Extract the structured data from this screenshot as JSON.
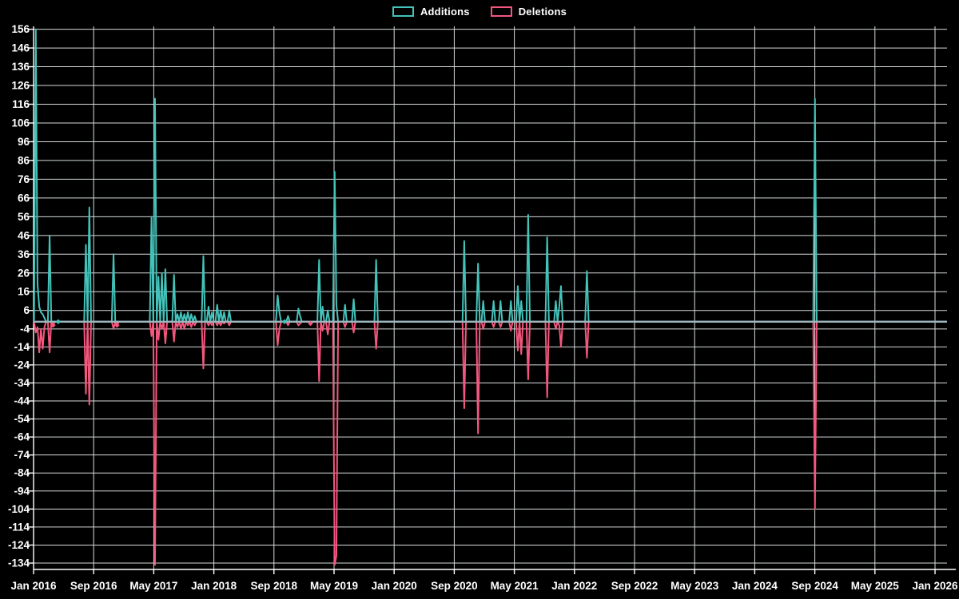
{
  "legend": {
    "items": [
      {
        "label": "Additions",
        "color": "#43c3ba"
      },
      {
        "label": "Deletions",
        "color": "#f4577d"
      }
    ]
  },
  "colors": {
    "background": "#000000",
    "grid": "#d7dbdd",
    "axis": "#ffffff",
    "tick_label": "#ffffff",
    "zero_line": "#9db5bd",
    "additions": "#43c3ba",
    "deletions": "#f4577d"
  },
  "y_axis": {
    "tick_max": 156,
    "tick_min": -134,
    "tick_step": 10,
    "labels": [
      "156",
      "146",
      "136",
      "126",
      "116",
      "106",
      "96",
      "86",
      "76",
      "66",
      "56",
      "46",
      "36",
      "26",
      "16",
      "6",
      "-4",
      "-14",
      "-24",
      "-34",
      "-44",
      "-54",
      "-64",
      "-74",
      "-84",
      "-94",
      "-104",
      "-114",
      "-124",
      "-134"
    ]
  },
  "x_axis": {
    "tick_interval_months": 8,
    "labels": [
      "Jan 2016",
      "Sep 2016",
      "May 2017",
      "Jan 2018",
      "Sep 2018",
      "May 2019",
      "Jan 2020",
      "Sep 2020",
      "May 2021",
      "Jan 2022",
      "Sep 2022",
      "May 2023",
      "Jan 2024",
      "Sep 2024",
      "May 2025",
      "Jan 2026"
    ]
  },
  "chart_data": {
    "type": "line",
    "title": "",
    "xlabel": "",
    "ylabel": "",
    "x_range": [
      "2016-01-03",
      "2026-02-01"
    ],
    "ylim": [
      -137,
      157
    ],
    "point_interval": "weekly",
    "grid": "on",
    "legend_position": "top-center",
    "series": [
      {
        "name": "Additions",
        "color": "#43c3ba"
      },
      {
        "name": "Deletions",
        "color": "#f4577d"
      }
    ],
    "baseline_note": "weeks not listed below have additions 0 and deletions 0",
    "weeks": [
      [
        "2016-01-03",
        0,
        0
      ],
      [
        "2016-01-10",
        156,
        -6
      ],
      [
        "2016-01-17",
        20,
        -3
      ],
      [
        "2016-01-24",
        8,
        -17
      ],
      [
        "2016-01-31",
        5,
        -4
      ],
      [
        "2016-02-07",
        4,
        -15
      ],
      [
        "2016-02-14",
        2,
        -3
      ],
      [
        "2016-03-06",
        46,
        -17
      ],
      [
        "2016-03-20",
        0,
        -2
      ],
      [
        "2016-04-10",
        0,
        0
      ],
      [
        "2016-07-31",
        41,
        -40
      ],
      [
        "2016-08-14",
        61,
        -46
      ],
      [
        "2016-11-20",
        36,
        -4
      ],
      [
        "2016-12-04",
        0,
        -2
      ],
      [
        "2017-04-23",
        56,
        -8
      ],
      [
        "2017-05-07",
        119,
        -135
      ],
      [
        "2017-05-21",
        24,
        -10
      ],
      [
        "2017-06-04",
        26,
        -4
      ],
      [
        "2017-06-18",
        28,
        -12
      ],
      [
        "2017-07-23",
        25,
        -11
      ],
      [
        "2017-08-06",
        4,
        -3
      ],
      [
        "2017-08-20",
        5,
        -4
      ],
      [
        "2017-09-03",
        4,
        -4
      ],
      [
        "2017-09-17",
        5,
        -2
      ],
      [
        "2017-10-01",
        4,
        -3
      ],
      [
        "2017-10-15",
        3,
        -2
      ],
      [
        "2017-11-19",
        35,
        -26
      ],
      [
        "2017-12-10",
        8,
        -2
      ],
      [
        "2017-12-24",
        5,
        -2
      ],
      [
        "2018-01-14",
        9,
        -2
      ],
      [
        "2018-01-28",
        6,
        -2
      ],
      [
        "2018-02-11",
        5,
        -1
      ],
      [
        "2018-03-04",
        6,
        -2
      ],
      [
        "2018-09-16",
        14,
        -13
      ],
      [
        "2018-09-23",
        5,
        -4
      ],
      [
        "2018-10-14",
        0,
        0
      ],
      [
        "2018-10-28",
        3,
        -2
      ],
      [
        "2018-12-09",
        7,
        -2
      ],
      [
        "2018-12-16",
        3,
        -1
      ],
      [
        "2019-01-27",
        0,
        -1
      ],
      [
        "2019-03-03",
        33,
        -33
      ],
      [
        "2019-03-17",
        8,
        -5
      ],
      [
        "2019-04-07",
        6,
        -7
      ],
      [
        "2019-05-05",
        80,
        -135
      ],
      [
        "2019-05-12",
        9,
        -130
      ],
      [
        "2019-06-16",
        9,
        -3
      ],
      [
        "2019-07-21",
        12,
        -6
      ],
      [
        "2019-10-20",
        33,
        -15
      ],
      [
        "2020-10-11",
        43,
        -48
      ],
      [
        "2020-12-06",
        31,
        -62
      ],
      [
        "2020-12-27",
        11,
        -4
      ],
      [
        "2021-02-07",
        11,
        -3
      ],
      [
        "2021-03-07",
        11,
        -3
      ],
      [
        "2021-04-18",
        11,
        -5
      ],
      [
        "2021-05-16",
        19,
        -16
      ],
      [
        "2021-05-30",
        11,
        -18
      ],
      [
        "2021-06-27",
        57,
        -32
      ],
      [
        "2021-09-12",
        45,
        -42
      ],
      [
        "2021-10-17",
        11,
        -4
      ],
      [
        "2021-10-31",
        8,
        -2
      ],
      [
        "2021-11-07",
        19,
        -14
      ],
      [
        "2022-02-20",
        27,
        -20
      ],
      [
        "2024-09-01",
        119,
        -104
      ]
    ],
    "markers": [
      [
        "Deletions",
        "2016-03-20",
        -2
      ],
      [
        "Additions",
        "2016-04-10",
        0
      ],
      [
        "Deletions",
        "2016-12-04",
        -2
      ],
      [
        "Additions",
        "2018-10-14",
        0
      ],
      [
        "Deletions",
        "2019-01-27",
        -1
      ]
    ]
  }
}
